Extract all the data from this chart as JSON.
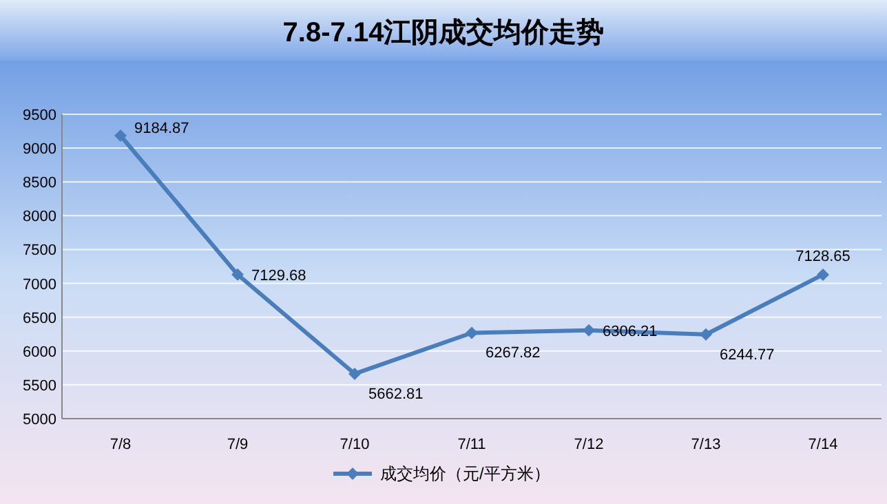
{
  "chart_data": {
    "type": "line",
    "title": "7.8-7.14江阴成交均价走势",
    "categories": [
      "7/8",
      "7/9",
      "7/10",
      "7/11",
      "7/12",
      "7/13",
      "7/14"
    ],
    "series": [
      {
        "name": "成交均价（元/平方米）",
        "color": "#4a7ebb",
        "values": [
          9184.87,
          7129.68,
          5662.81,
          6267.82,
          6306.21,
          6244.77,
          7128.65
        ]
      }
    ],
    "ylim": [
      5000,
      9500
    ],
    "yticks": [
      5000,
      5500,
      6000,
      6500,
      7000,
      7500,
      8000,
      8500,
      9000,
      9500
    ],
    "grid": "y",
    "legend": "bottom",
    "marker": "diamond",
    "line_style": "solid",
    "data_labels": true
  }
}
